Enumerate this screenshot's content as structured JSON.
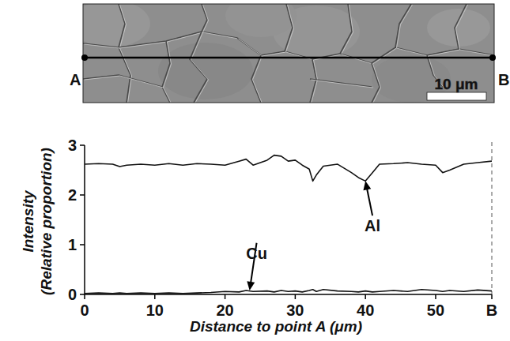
{
  "chart_data": {
    "type": "line",
    "xlabel": "Distance to point A (μm)",
    "ylabel": [
      "Intensity",
      "(Relative proportion)"
    ],
    "x": [
      0,
      2,
      4,
      5,
      6,
      8,
      10,
      12,
      14,
      16,
      18,
      20,
      22,
      23,
      24,
      26,
      27,
      28,
      29,
      30,
      31,
      32,
      32.5,
      33,
      34,
      36,
      38,
      39,
      40,
      41,
      42,
      44,
      46,
      48,
      50,
      51,
      52,
      54,
      56,
      58
    ],
    "series": [
      {
        "name": "Al",
        "color": "#111111",
        "values": [
          2.62,
          2.63,
          2.62,
          2.57,
          2.6,
          2.62,
          2.6,
          2.63,
          2.6,
          2.63,
          2.62,
          2.6,
          2.68,
          2.72,
          2.6,
          2.7,
          2.8,
          2.78,
          2.68,
          2.7,
          2.6,
          2.52,
          2.28,
          2.4,
          2.58,
          2.62,
          2.45,
          2.35,
          2.28,
          2.45,
          2.62,
          2.63,
          2.65,
          2.62,
          2.6,
          2.45,
          2.5,
          2.62,
          2.65,
          2.68
        ]
      },
      {
        "name": "Cu",
        "color": "#111111",
        "values": [
          0.02,
          0.03,
          0.02,
          0.03,
          0.02,
          0.03,
          0.02,
          0.03,
          0.02,
          0.03,
          0.04,
          0.06,
          0.05,
          0.08,
          0.06,
          0.07,
          0.05,
          0.08,
          0.06,
          0.07,
          0.05,
          0.08,
          0.1,
          0.06,
          0.1,
          0.07,
          0.06,
          0.05,
          0.07,
          0.05,
          0.06,
          0.08,
          0.06,
          0.1,
          0.08,
          0.06,
          0.08,
          0.06,
          0.09,
          0.07
        ]
      }
    ],
    "annotations": [
      {
        "text": "Al",
        "x": 41,
        "y": 1.3,
        "point_x": 40,
        "point_y": 2.28
      },
      {
        "text": "Cu",
        "x": 24.5,
        "y": 0.75,
        "point_x": 23.5,
        "point_y": 0.08
      }
    ],
    "xlim": [
      0,
      58
    ],
    "ylim": [
      0,
      3
    ],
    "xticks": [
      0,
      10,
      20,
      30,
      40,
      50,
      {
        "value": 58,
        "label": "B"
      }
    ],
    "yticks": [
      0,
      1,
      2,
      3
    ],
    "grid": false
  },
  "micrograph": {
    "start_label": "A",
    "end_label": "B",
    "scale_bar": "10 μm"
  }
}
